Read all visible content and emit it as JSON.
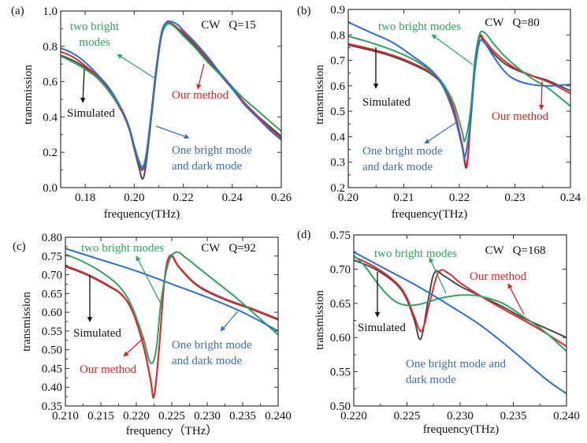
{
  "colors": {
    "simulated": "#4a4a4a",
    "our_method": "#e8262b",
    "two_bright": "#2ea660",
    "one_bright_dark": "#2a6fd6",
    "anno_black": "#111111",
    "anno_red": "#e02020",
    "anno_green": "#2ea660",
    "anno_blue": "#3a6fb8"
  },
  "chart_data": [
    {
      "type": "line",
      "panel_label": "(a)",
      "title": "CW   Q=15",
      "xlabel": "frequency(THz)",
      "ylabel": "transmission",
      "xlim": [
        0.17,
        0.26
      ],
      "ylim": [
        0.0,
        1.0
      ],
      "xticks": [
        "0.18",
        "0.20",
        "0.22",
        "0.24",
        "0.26"
      ],
      "xtick_values": [
        0.18,
        0.2,
        0.22,
        0.24,
        0.26
      ],
      "yticks": [
        "0.0",
        "0.2",
        "0.4",
        "0.6",
        "0.8",
        "1.0"
      ],
      "ytick_values": [
        0.0,
        0.2,
        0.4,
        0.6,
        0.8,
        1.0
      ],
      "series": [
        {
          "name": "Simulated",
          "key": "simulated",
          "x": [
            0.17,
            0.175,
            0.18,
            0.185,
            0.19,
            0.195,
            0.198,
            0.2,
            0.202,
            0.2035,
            0.205,
            0.207,
            0.209,
            0.211,
            0.213,
            0.215,
            0.218,
            0.22,
            0.225,
            0.23,
            0.235,
            0.24,
            0.245,
            0.25,
            0.255,
            0.26
          ],
          "y": [
            0.75,
            0.72,
            0.68,
            0.62,
            0.54,
            0.43,
            0.33,
            0.22,
            0.11,
            0.05,
            0.15,
            0.4,
            0.65,
            0.85,
            0.92,
            0.93,
            0.9,
            0.87,
            0.8,
            0.72,
            0.64,
            0.56,
            0.48,
            0.41,
            0.35,
            0.29
          ]
        },
        {
          "name": "Our method",
          "key": "our_method",
          "x": [
            0.17,
            0.175,
            0.18,
            0.185,
            0.19,
            0.195,
            0.198,
            0.2,
            0.202,
            0.2035,
            0.205,
            0.207,
            0.209,
            0.211,
            0.213,
            0.215,
            0.218,
            0.22,
            0.225,
            0.23,
            0.235,
            0.24,
            0.245,
            0.25,
            0.255,
            0.26
          ],
          "y": [
            0.77,
            0.74,
            0.69,
            0.63,
            0.55,
            0.43,
            0.33,
            0.22,
            0.13,
            0.1,
            0.17,
            0.41,
            0.66,
            0.86,
            0.93,
            0.93,
            0.9,
            0.88,
            0.81,
            0.73,
            0.65,
            0.57,
            0.48,
            0.41,
            0.34,
            0.28
          ]
        },
        {
          "name": "two bright modes",
          "key": "two_bright",
          "x": [
            0.17,
            0.175,
            0.18,
            0.185,
            0.19,
            0.195,
            0.198,
            0.2,
            0.202,
            0.2035,
            0.205,
            0.207,
            0.209,
            0.211,
            0.213,
            0.215,
            0.218,
            0.22,
            0.225,
            0.23,
            0.235,
            0.24,
            0.245,
            0.25,
            0.255,
            0.26
          ],
          "y": [
            0.745,
            0.71,
            0.67,
            0.62,
            0.54,
            0.44,
            0.34,
            0.24,
            0.15,
            0.12,
            0.2,
            0.43,
            0.68,
            0.86,
            0.92,
            0.925,
            0.89,
            0.86,
            0.79,
            0.71,
            0.64,
            0.57,
            0.5,
            0.44,
            0.38,
            0.32
          ]
        },
        {
          "name": "One bright mode and dark mode",
          "key": "one_bright_dark",
          "x": [
            0.17,
            0.175,
            0.18,
            0.185,
            0.19,
            0.195,
            0.198,
            0.2,
            0.202,
            0.2035,
            0.205,
            0.207,
            0.209,
            0.211,
            0.213,
            0.215,
            0.218,
            0.22,
            0.225,
            0.23,
            0.235,
            0.24,
            0.245,
            0.25,
            0.255,
            0.26
          ],
          "y": [
            0.79,
            0.76,
            0.71,
            0.64,
            0.56,
            0.44,
            0.34,
            0.23,
            0.14,
            0.11,
            0.18,
            0.42,
            0.67,
            0.87,
            0.935,
            0.94,
            0.92,
            0.89,
            0.82,
            0.74,
            0.65,
            0.56,
            0.47,
            0.4,
            0.33,
            0.27
          ]
        }
      ],
      "annotations": [
        {
          "text": "two bright modes",
          "lines": [
            "two bright",
            "modes"
          ],
          "key": "anno_green"
        },
        {
          "text": "Our method",
          "lines": [
            "Our method"
          ],
          "key": "anno_red"
        },
        {
          "text": "Simulated",
          "lines": [
            "Simulated"
          ],
          "key": "anno_black"
        },
        {
          "text": "One bright mode and dark mode",
          "lines": [
            "One bright mode",
            "and dark mode"
          ],
          "key": "anno_blue"
        }
      ]
    },
    {
      "type": "line",
      "panel_label": "(b)",
      "title": "CW   Q=80",
      "xlabel": "frequency(THz)",
      "ylabel": "transmission",
      "xlim": [
        0.2,
        0.24
      ],
      "ylim": [
        0.2,
        0.9
      ],
      "xticks": [
        "0.20",
        "0.21",
        "0.22",
        "0.23",
        "0.24"
      ],
      "xtick_values": [
        0.2,
        0.21,
        0.22,
        0.23,
        0.24
      ],
      "yticks": [
        "0.2",
        "0.3",
        "0.4",
        "0.5",
        "0.6",
        "0.7",
        "0.8",
        "0.9"
      ],
      "ytick_values": [
        0.2,
        0.3,
        0.4,
        0.5,
        0.6,
        0.7,
        0.8,
        0.9
      ],
      "series": [
        {
          "name": "Simulated",
          "key": "simulated",
          "x": [
            0.2,
            0.204,
            0.208,
            0.212,
            0.215,
            0.217,
            0.219,
            0.2205,
            0.2213,
            0.222,
            0.2228,
            0.2236,
            0.2245,
            0.226,
            0.228,
            0.23,
            0.233,
            0.236,
            0.24
          ],
          "y": [
            0.76,
            0.74,
            0.715,
            0.68,
            0.645,
            0.6,
            0.5,
            0.36,
            0.28,
            0.45,
            0.68,
            0.79,
            0.77,
            0.73,
            0.69,
            0.665,
            0.64,
            0.62,
            0.58
          ]
        },
        {
          "name": "Our method",
          "key": "our_method",
          "x": [
            0.2,
            0.204,
            0.208,
            0.212,
            0.215,
            0.217,
            0.219,
            0.2205,
            0.2213,
            0.222,
            0.2228,
            0.2236,
            0.2245,
            0.226,
            0.228,
            0.23,
            0.233,
            0.236,
            0.24
          ],
          "y": [
            0.765,
            0.745,
            0.72,
            0.685,
            0.65,
            0.605,
            0.51,
            0.37,
            0.29,
            0.46,
            0.69,
            0.795,
            0.78,
            0.74,
            0.7,
            0.67,
            0.64,
            0.615,
            0.57
          ]
        },
        {
          "name": "two bright modes",
          "key": "two_bright",
          "x": [
            0.2,
            0.204,
            0.208,
            0.212,
            0.215,
            0.217,
            0.219,
            0.2205,
            0.221,
            0.222,
            0.2228,
            0.2236,
            0.2245,
            0.226,
            0.228,
            0.23,
            0.233,
            0.236,
            0.24
          ],
          "y": [
            0.795,
            0.77,
            0.74,
            0.7,
            0.655,
            0.61,
            0.53,
            0.42,
            0.385,
            0.5,
            0.7,
            0.8,
            0.81,
            0.77,
            0.72,
            0.68,
            0.63,
            0.59,
            0.52
          ]
        },
        {
          "name": "One bright mode and dark mode",
          "key": "one_bright_dark",
          "x": [
            0.2,
            0.204,
            0.208,
            0.212,
            0.215,
            0.217,
            0.219,
            0.2205,
            0.221,
            0.222,
            0.2228,
            0.2236,
            0.2245,
            0.226,
            0.228,
            0.23,
            0.233,
            0.236,
            0.24
          ],
          "y": [
            0.85,
            0.81,
            0.77,
            0.71,
            0.66,
            0.6,
            0.49,
            0.36,
            0.32,
            0.46,
            0.66,
            0.77,
            0.77,
            0.72,
            0.66,
            0.625,
            0.605,
            0.6,
            0.605
          ]
        }
      ],
      "annotations": [
        {
          "text": "two bright modes",
          "lines": [
            "two bright modes"
          ],
          "key": "anno_green"
        },
        {
          "text": "Simulated",
          "lines": [
            "Simulated"
          ],
          "key": "anno_black"
        },
        {
          "text": "Our method",
          "lines": [
            "Our method"
          ],
          "key": "anno_red"
        },
        {
          "text": "One bright mode and dark mode",
          "lines": [
            "One bright mode",
            "and dark mode"
          ],
          "key": "anno_blue"
        }
      ]
    },
    {
      "type": "line",
      "panel_label": "(c)",
      "title": "CW   Q=92",
      "xlabel": "frequency（THz）",
      "ylabel": "transmission",
      "xlim": [
        0.21,
        0.24
      ],
      "ylim": [
        0.35,
        0.8
      ],
      "xticks": [
        "0.210",
        "0.215",
        "0.220",
        "0.225",
        "0.230",
        "0.235",
        "0.240"
      ],
      "xtick_values": [
        0.21,
        0.215,
        0.22,
        0.225,
        0.23,
        0.235,
        0.24
      ],
      "yticks": [
        "0.35",
        "0.40",
        "0.45",
        "0.50",
        "0.55",
        "0.60",
        "0.65",
        "0.70",
        "0.75",
        "0.80"
      ],
      "ytick_values": [
        0.35,
        0.4,
        0.45,
        0.5,
        0.55,
        0.6,
        0.65,
        0.7,
        0.75,
        0.8
      ],
      "series": [
        {
          "name": "Simulated",
          "key": "simulated",
          "x": [
            0.21,
            0.213,
            0.216,
            0.218,
            0.2195,
            0.221,
            0.222,
            0.2225,
            0.2232,
            0.224,
            0.2248,
            0.226,
            0.228,
            0.23,
            0.233,
            0.236,
            0.24
          ],
          "y": [
            0.722,
            0.7,
            0.67,
            0.645,
            0.6,
            0.51,
            0.42,
            0.375,
            0.5,
            0.69,
            0.75,
            0.72,
            0.68,
            0.655,
            0.63,
            0.61,
            0.58
          ]
        },
        {
          "name": "Our method",
          "key": "our_method",
          "x": [
            0.21,
            0.213,
            0.216,
            0.218,
            0.2195,
            0.221,
            0.222,
            0.2225,
            0.2232,
            0.224,
            0.2248,
            0.226,
            0.228,
            0.23,
            0.233,
            0.236,
            0.24
          ],
          "y": [
            0.724,
            0.702,
            0.672,
            0.646,
            0.601,
            0.512,
            0.422,
            0.376,
            0.5,
            0.69,
            0.752,
            0.722,
            0.682,
            0.657,
            0.632,
            0.612,
            0.582
          ]
        },
        {
          "name": "two bright modes",
          "key": "two_bright",
          "x": [
            0.21,
            0.213,
            0.216,
            0.218,
            0.2195,
            0.221,
            0.222,
            0.2228,
            0.2235,
            0.2245,
            0.2256,
            0.227,
            0.229,
            0.231,
            0.234,
            0.237,
            0.24
          ],
          "y": [
            0.755,
            0.73,
            0.695,
            0.66,
            0.61,
            0.53,
            0.465,
            0.5,
            0.63,
            0.73,
            0.76,
            0.745,
            0.715,
            0.685,
            0.64,
            0.59,
            0.54
          ]
        },
        {
          "name": "One bright mode and dark mode",
          "key": "one_bright_dark",
          "x": [
            0.21,
            0.215,
            0.22,
            0.225,
            0.23,
            0.235,
            0.24
          ],
          "y": [
            0.77,
            0.74,
            0.71,
            0.675,
            0.64,
            0.6,
            0.55
          ]
        }
      ],
      "annotations": [
        {
          "text": "two bright modes",
          "lines": [
            "two bright modes"
          ],
          "key": "anno_green"
        },
        {
          "text": "Simulated",
          "lines": [
            "Simulated"
          ],
          "key": "anno_black"
        },
        {
          "text": "Our method",
          "lines": [
            "Our method"
          ],
          "key": "anno_red"
        },
        {
          "text": "One bright mode and dark mode",
          "lines": [
            "One bright mode",
            "and dark mode"
          ],
          "key": "anno_blue"
        }
      ]
    },
    {
      "type": "line",
      "panel_label": "(d)",
      "title": "CW   Q=168",
      "xlabel": "frequency(THz)",
      "ylabel": "transmission",
      "xlim": [
        0.22,
        0.24
      ],
      "ylim": [
        0.5,
        0.75
      ],
      "xticks": [
        "0.220",
        "0.225",
        "0.230",
        "0.235",
        "0.240"
      ],
      "xtick_values": [
        0.22,
        0.225,
        0.23,
        0.235,
        0.24
      ],
      "yticks": [
        "0.50",
        "0.55",
        "0.60",
        "0.65",
        "0.70",
        "0.75"
      ],
      "ytick_values": [
        0.5,
        0.55,
        0.6,
        0.65,
        0.7,
        0.75
      ],
      "series": [
        {
          "name": "Simulated",
          "key": "simulated",
          "x": [
            0.22,
            0.222,
            0.224,
            0.225,
            0.2257,
            0.2263,
            0.227,
            0.2276,
            0.2285,
            0.23,
            0.232,
            0.234,
            0.236,
            0.238,
            0.24
          ],
          "y": [
            0.713,
            0.7,
            0.678,
            0.655,
            0.625,
            0.598,
            0.655,
            0.695,
            0.69,
            0.675,
            0.66,
            0.645,
            0.628,
            0.614,
            0.6
          ]
        },
        {
          "name": "Our method",
          "key": "our_method",
          "x": [
            0.22,
            0.222,
            0.224,
            0.225,
            0.2257,
            0.2264,
            0.2272,
            0.228,
            0.229,
            0.23,
            0.232,
            0.234,
            0.236,
            0.238,
            0.24
          ],
          "y": [
            0.718,
            0.703,
            0.68,
            0.658,
            0.63,
            0.61,
            0.655,
            0.696,
            0.693,
            0.68,
            0.66,
            0.642,
            0.625,
            0.607,
            0.587
          ]
        },
        {
          "name": "two bright modes",
          "key": "two_bright",
          "x": [
            0.22,
            0.221,
            0.222,
            0.223,
            0.224,
            0.225,
            0.226,
            0.227,
            0.228,
            0.229,
            0.23,
            0.231,
            0.232,
            0.234,
            0.236,
            0.238,
            0.24
          ],
          "y": [
            0.72,
            0.705,
            0.684,
            0.665,
            0.652,
            0.647,
            0.648,
            0.652,
            0.657,
            0.66,
            0.662,
            0.662,
            0.66,
            0.65,
            0.63,
            0.608,
            0.58
          ]
        },
        {
          "name": "One bright mode and dark mode",
          "key": "one_bright_dark",
          "x": [
            0.22,
            0.223,
            0.226,
            0.229,
            0.232,
            0.235,
            0.238,
            0.24
          ],
          "y": [
            0.725,
            0.7,
            0.675,
            0.647,
            0.617,
            0.58,
            0.54,
            0.518
          ]
        }
      ],
      "annotations": [
        {
          "text": "two bright modes",
          "lines": [
            "two bright modes"
          ],
          "key": "anno_green"
        },
        {
          "text": "Our method",
          "lines": [
            "Our method"
          ],
          "key": "anno_red"
        },
        {
          "text": "Simulated",
          "lines": [
            "Simulated"
          ],
          "key": "anno_black"
        },
        {
          "text": "One bright mode and dark mode",
          "lines": [
            "One bright mode and",
            "dark mode"
          ],
          "key": "anno_blue"
        }
      ]
    }
  ]
}
